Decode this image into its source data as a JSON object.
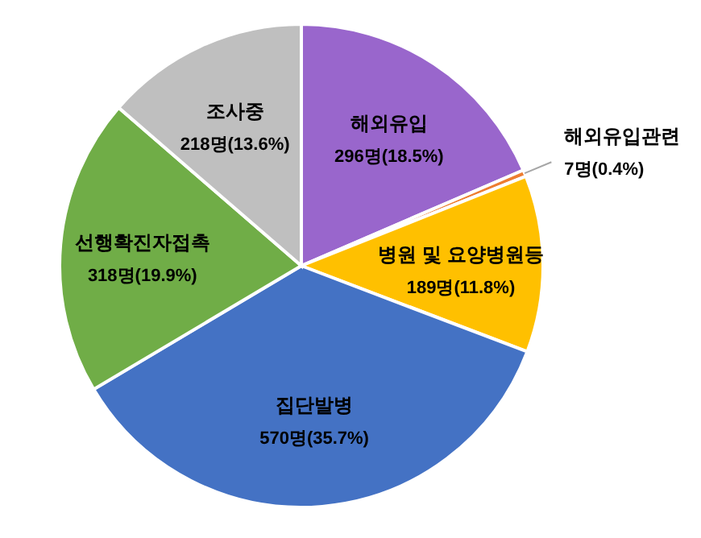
{
  "chart_data": {
    "type": "pie",
    "categories": [
      "해외유입",
      "해외유입관련",
      "병원 및 요양병원등",
      "집단발병",
      "선행확진자접촉",
      "조사중"
    ],
    "values": [
      296,
      7,
      189,
      570,
      318,
      218
    ],
    "value_labels": [
      "296명(18.5%)",
      "7명(0.4%)",
      "189명(11.8%)",
      "570명(35.7%)",
      "318명(19.9%)",
      "218명(13.6%)"
    ],
    "colors": [
      "#9966cc",
      "#ed7d31",
      "#ffc000",
      "#4472c4",
      "#70ad47",
      "#bfbfbf"
    ]
  }
}
